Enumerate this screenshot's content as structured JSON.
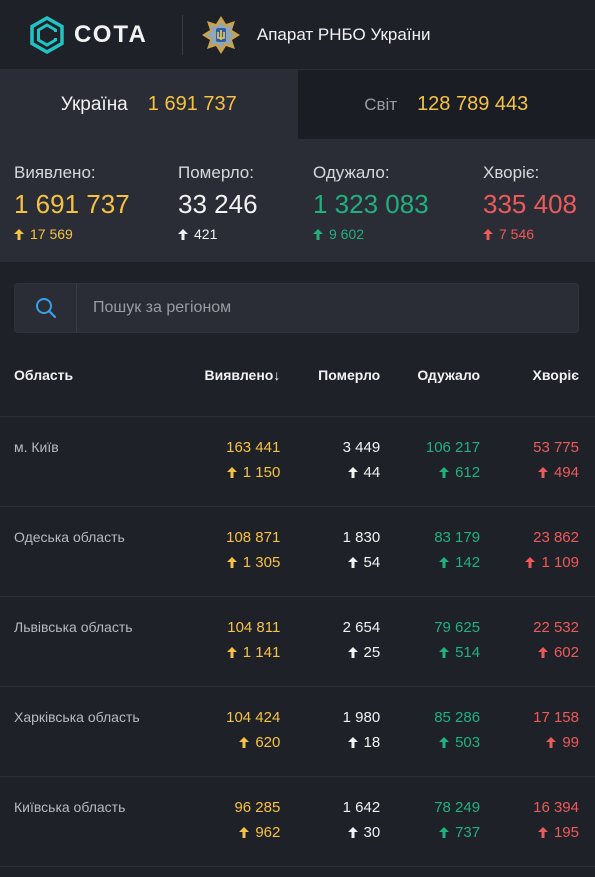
{
  "header": {
    "logo_text": "СОТА",
    "org_name": "Апарат РНБО України"
  },
  "tabs": [
    {
      "label": "Україна",
      "value": "1 691 737"
    },
    {
      "label": "Світ",
      "value": "128 789 443"
    }
  ],
  "stats": [
    {
      "label": "Виявлено:",
      "value": "1 691 737",
      "delta": "17 569",
      "color": "#f6c244"
    },
    {
      "label": "Померло:",
      "value": "33 246",
      "delta": "421",
      "color": "#f2f2f2"
    },
    {
      "label": "Одужало:",
      "value": "1 323 083",
      "delta": "9 602",
      "color": "#22b07d"
    },
    {
      "label": "Хворіє:",
      "value": "335 408",
      "delta": "7 546",
      "color": "#ec5a5a"
    }
  ],
  "search": {
    "placeholder": "Пошук за регіоном"
  },
  "table": {
    "headers": {
      "region": "Область",
      "detected": "Виявлено",
      "sort_indicator": "↓",
      "died": "Померло",
      "recovered": "Одужало",
      "sick": "Хворіє"
    },
    "rows": [
      {
        "region": "м. Київ",
        "detected": "163 441",
        "detected_delta": "1 150",
        "died": "3 449",
        "died_delta": "44",
        "recovered": "106 217",
        "recovered_delta": "612",
        "sick": "53 775",
        "sick_delta": "494"
      },
      {
        "region": "Одеська область",
        "detected": "108 871",
        "detected_delta": "1 305",
        "died": "1 830",
        "died_delta": "54",
        "recovered": "83 179",
        "recovered_delta": "142",
        "sick": "23 862",
        "sick_delta": "1 109"
      },
      {
        "region": "Львівська область",
        "detected": "104 811",
        "detected_delta": "1 141",
        "died": "2 654",
        "died_delta": "25",
        "recovered": "79 625",
        "recovered_delta": "514",
        "sick": "22 532",
        "sick_delta": "602"
      },
      {
        "region": "Харківська область",
        "detected": "104 424",
        "detected_delta": "620",
        "died": "1 980",
        "died_delta": "18",
        "recovered": "85 286",
        "recovered_delta": "503",
        "sick": "17 158",
        "sick_delta": "99"
      },
      {
        "region": "Київська область",
        "detected": "96 285",
        "detected_delta": "962",
        "died": "1 642",
        "died_delta": "30",
        "recovered": "78 249",
        "recovered_delta": "737",
        "sick": "16 394",
        "sick_delta": "195"
      }
    ]
  },
  "icons": {
    "logo": "cota-logo-icon",
    "emblem": "rnbo-emblem-icon",
    "search": "search-icon",
    "delta": "arrow-up-icon"
  }
}
